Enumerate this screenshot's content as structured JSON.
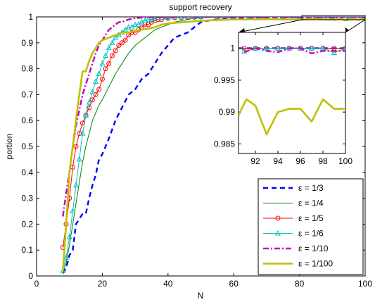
{
  "chart_data": [
    {
      "type": "line",
      "title": "support recovery",
      "xlabel": "N",
      "ylabel": "portion",
      "xlim": [
        0,
        100
      ],
      "ylim": [
        0,
        1
      ],
      "xticks": [
        "0",
        "20",
        "40",
        "60",
        "80",
        "100"
      ],
      "yticks": [
        "0",
        "0.1",
        "0.2",
        "0.3",
        "0.4",
        "0.5",
        "0.6",
        "0.7",
        "0.8",
        "0.9",
        "1"
      ],
      "grid": false,
      "legend_position": "bottom-right",
      "series": [
        {
          "name": "ε = 1/3",
          "color": "#0000ff",
          "style": "dashed",
          "x": [
            8,
            9,
            10,
            11,
            12,
            13,
            14,
            15,
            16,
            17,
            18,
            19,
            20,
            21,
            22,
            24,
            26,
            28,
            30,
            32,
            34,
            36,
            38,
            40,
            42,
            44,
            46,
            48,
            50,
            52,
            55,
            60,
            65,
            70,
            75,
            80,
            85,
            90,
            95,
            100
          ],
          "y": [
            0.01,
            0.03,
            0.08,
            0.1,
            0.2,
            0.22,
            0.24,
            0.24,
            0.3,
            0.35,
            0.39,
            0.45,
            0.47,
            0.5,
            0.53,
            0.6,
            0.65,
            0.7,
            0.72,
            0.76,
            0.78,
            0.82,
            0.86,
            0.89,
            0.92,
            0.93,
            0.94,
            0.96,
            0.98,
            0.985,
            0.99,
            0.995,
            0.998,
            0.998,
            0.999,
            0.999,
            1.0,
            1.0,
            1.0,
            1.0
          ]
        },
        {
          "name": "ε = 1/4",
          "color": "#008000",
          "style": "solid",
          "x": [
            8,
            9,
            10,
            11,
            12,
            13,
            14,
            15,
            16,
            17,
            18,
            19,
            20,
            22,
            24,
            26,
            28,
            30,
            32,
            34,
            36,
            38,
            40,
            42,
            44,
            46,
            48,
            50,
            55,
            60,
            70,
            80,
            90,
            100
          ],
          "y": [
            0.01,
            0.05,
            0.12,
            0.2,
            0.28,
            0.36,
            0.44,
            0.5,
            0.55,
            0.6,
            0.63,
            0.66,
            0.68,
            0.73,
            0.78,
            0.82,
            0.86,
            0.89,
            0.91,
            0.93,
            0.95,
            0.96,
            0.97,
            0.98,
            0.985,
            0.99,
            0.995,
            0.997,
            0.998,
            0.999,
            1.0,
            1.0,
            1.0,
            1.0
          ]
        },
        {
          "name": "ε = 1/5",
          "color": "#ff0000",
          "style": "solid-circle",
          "x": [
            8,
            9,
            10,
            11,
            12,
            13,
            14,
            15,
            16,
            17,
            18,
            19,
            20,
            21,
            22,
            23,
            24,
            25,
            26,
            27,
            28,
            29,
            30,
            31,
            32,
            33,
            34,
            35,
            36,
            37,
            38,
            40,
            42,
            44,
            46,
            48,
            50,
            55,
            60,
            65,
            70,
            75,
            80,
            85,
            90,
            95,
            100
          ],
          "y": [
            0.11,
            0.2,
            0.3,
            0.42,
            0.5,
            0.55,
            0.59,
            0.62,
            0.65,
            0.68,
            0.7,
            0.72,
            0.76,
            0.8,
            0.82,
            0.85,
            0.87,
            0.89,
            0.9,
            0.91,
            0.93,
            0.94,
            0.94,
            0.95,
            0.96,
            0.97,
            0.97,
            0.98,
            0.985,
            0.99,
            0.99,
            0.995,
            0.997,
            0.998,
            0.999,
            0.999,
            1.0,
            1.0,
            1.0,
            1.0,
            1.0,
            1.0,
            1.0,
            1.0,
            1.0,
            1.0,
            1.0
          ]
        },
        {
          "name": "ε = 1/6",
          "color": "#00bfbf",
          "style": "solid-triangle",
          "x": [
            8,
            9,
            10,
            11,
            12,
            13,
            14,
            15,
            16,
            17,
            18,
            19,
            20,
            21,
            22,
            23,
            24,
            25,
            26,
            27,
            28,
            29,
            30,
            31,
            32,
            33,
            34,
            35,
            36,
            38,
            40,
            42,
            44,
            46,
            48,
            50,
            55,
            60,
            65,
            70,
            75,
            80,
            85,
            90,
            95,
            100
          ],
          "y": [
            0.02,
            0.07,
            0.15,
            0.25,
            0.35,
            0.45,
            0.55,
            0.62,
            0.67,
            0.71,
            0.75,
            0.78,
            0.82,
            0.85,
            0.88,
            0.9,
            0.92,
            0.93,
            0.94,
            0.95,
            0.96,
            0.96,
            0.97,
            0.97,
            0.98,
            0.985,
            0.99,
            0.99,
            0.995,
            0.997,
            0.998,
            0.999,
            0.999,
            1.0,
            1.0,
            1.0,
            1.0,
            1.0,
            1.0,
            1.0,
            1.0,
            1.0,
            1.0,
            1.0,
            0.999,
            1.0
          ]
        },
        {
          "name": "ε = 1/10",
          "color": "#bf00bf",
          "style": "dashdot",
          "x": [
            8,
            9,
            10,
            11,
            12,
            13,
            14,
            15,
            16,
            17,
            18,
            19,
            20,
            21,
            22,
            23,
            24,
            25,
            26,
            27,
            28,
            30,
            32,
            34,
            36,
            38,
            40,
            45,
            50,
            60,
            70,
            80,
            90,
            95,
            100
          ],
          "y": [
            0.23,
            0.32,
            0.4,
            0.5,
            0.58,
            0.64,
            0.7,
            0.74,
            0.78,
            0.82,
            0.86,
            0.89,
            0.91,
            0.93,
            0.95,
            0.96,
            0.97,
            0.98,
            0.98,
            0.985,
            0.99,
            0.995,
            0.997,
            0.998,
            0.999,
            0.999,
            1.0,
            1.0,
            1.0,
            0.999,
            0.999,
            0.999,
            0.998,
            0.999,
            0.999
          ]
        },
        {
          "name": "ε = 1/100",
          "color": "#bfbf00",
          "style": "thick",
          "x": [
            8,
            9,
            10,
            11,
            12,
            13,
            14,
            15,
            16,
            17,
            18,
            19,
            20,
            22,
            24,
            26,
            28,
            30,
            32,
            34,
            36,
            38,
            40,
            45,
            50,
            55,
            60,
            65,
            70,
            75,
            80,
            85,
            88,
            91,
            92,
            93,
            94,
            95,
            96,
            97,
            98,
            99,
            100
          ],
          "y": [
            0.02,
            0.2,
            0.4,
            0.5,
            0.6,
            0.7,
            0.79,
            0.79,
            0.83,
            0.86,
            0.88,
            0.9,
            0.91,
            0.92,
            0.93,
            0.94,
            0.94,
            0.945,
            0.95,
            0.955,
            0.96,
            0.97,
            0.975,
            0.98,
            0.985,
            0.988,
            0.99,
            0.99,
            0.991,
            0.99,
            0.99,
            0.992,
            0.99,
            0.9895,
            0.992,
            0.991,
            0.9865,
            0.99,
            0.9905,
            0.9905,
            0.9885,
            0.992,
            0.9905
          ]
        }
      ]
    },
    {
      "type": "line",
      "title": "",
      "xlim": [
        90.5,
        100
      ],
      "ylim": [
        0.9835,
        1.0025
      ],
      "xticks": [
        "92",
        "94",
        "96",
        "98",
        "100"
      ],
      "yticks": [
        "0.985",
        "0.99",
        "0.995",
        "1"
      ],
      "series": [
        {
          "name": "ε = 1/3",
          "color": "#0000ff",
          "style": "dashed",
          "x": [
            90.5,
            100
          ],
          "y": [
            1.0,
            1.0
          ]
        },
        {
          "name": "ε = 1/4",
          "color": "#008000",
          "style": "solid",
          "x": [
            90.5,
            100
          ],
          "y": [
            1.0,
            1.0
          ]
        },
        {
          "name": "ε = 1/5",
          "color": "#ff0000",
          "style": "solid-circle",
          "x": [
            91,
            92,
            93,
            94,
            95,
            96,
            97,
            98,
            99,
            100
          ],
          "y": [
            1.0,
            1.0,
            1.0,
            1.0,
            1.0,
            1.0,
            1.0,
            1.0,
            1.0,
            1.0
          ]
        },
        {
          "name": "ε = 1/6",
          "color": "#00bfbf",
          "style": "solid-triangle",
          "x": [
            91,
            92,
            93,
            94,
            95,
            96,
            97,
            98,
            99,
            100
          ],
          "y": [
            0.9995,
            1.0,
            1.0,
            1.0,
            1.0,
            1.0,
            1.0,
            1.0,
            0.9993,
            1.0
          ]
        },
        {
          "name": "ε = 1/10",
          "color": "#bf00bf",
          "style": "dashdot",
          "x": [
            91,
            92,
            93,
            94,
            95,
            96,
            97,
            98,
            99,
            100
          ],
          "y": [
            0.9994,
            1.0,
            0.9996,
            0.9994,
            1.0,
            1.0,
            0.9992,
            0.9996,
            0.9996,
            0.9996
          ]
        },
        {
          "name": "ε = 1/100",
          "color": "#bfbf00",
          "style": "thick",
          "x": [
            90.5,
            91.2,
            92,
            93,
            94,
            95,
            96,
            97,
            98,
            99,
            100
          ],
          "y": [
            0.9895,
            0.992,
            0.991,
            0.9865,
            0.99,
            0.9905,
            0.9905,
            0.9885,
            0.992,
            0.9905,
            0.9905
          ]
        }
      ]
    }
  ]
}
